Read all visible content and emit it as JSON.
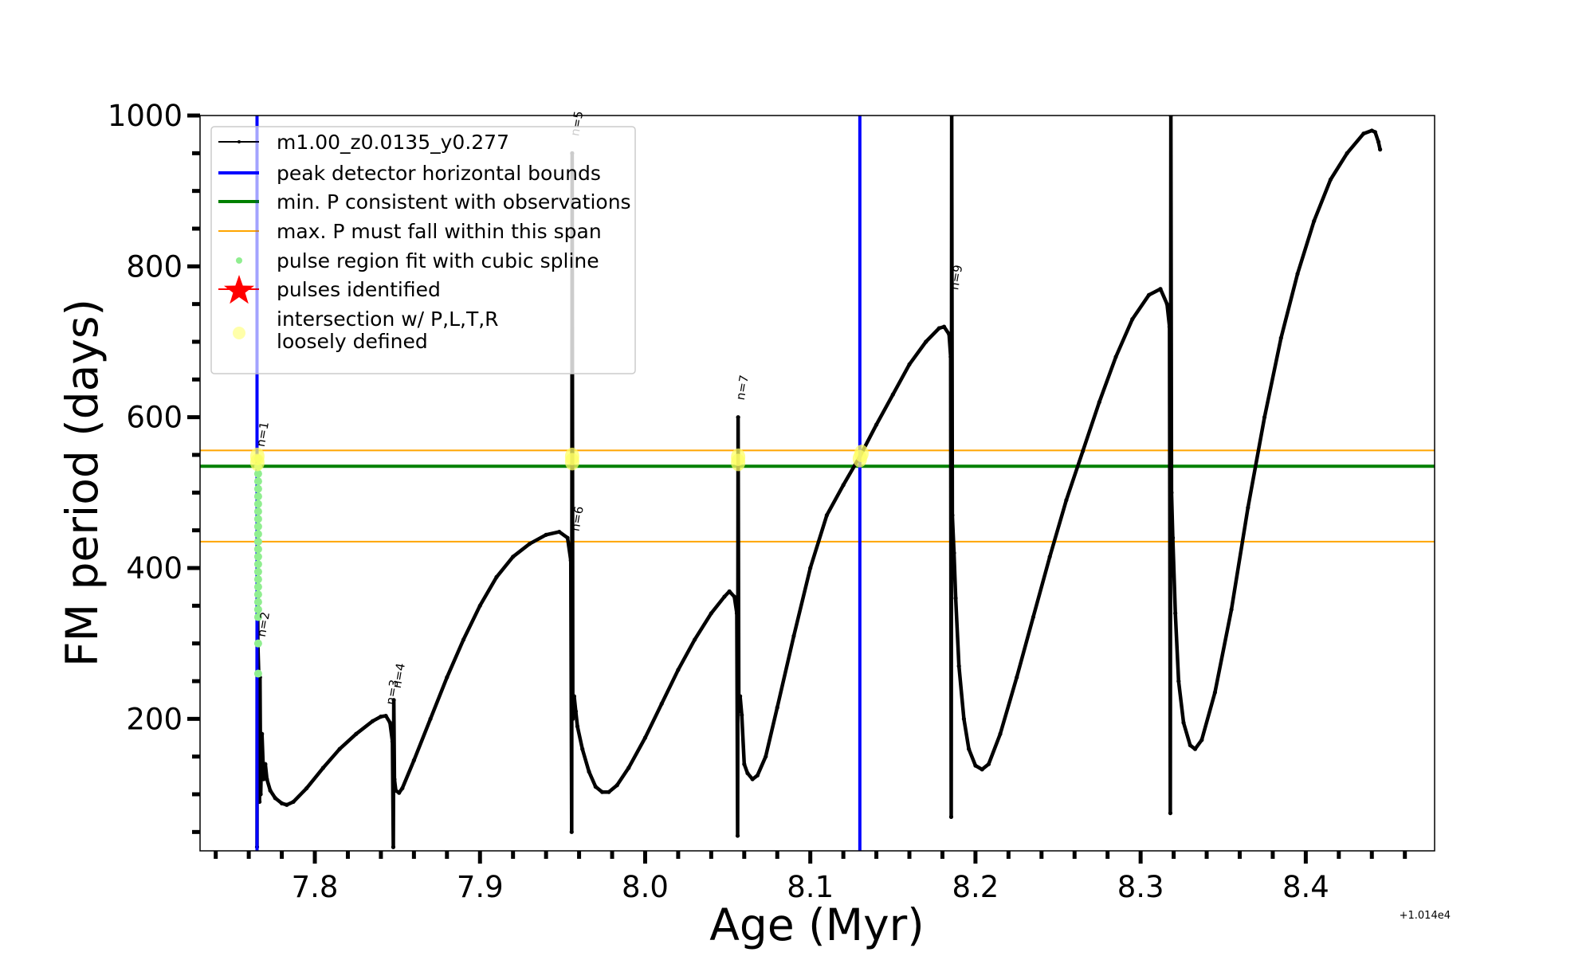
{
  "chart_data": {
    "type": "line",
    "title": "",
    "xlabel": "Age (Myr)",
    "ylabel": "FM period (days)",
    "x_offset_text": "+1.014e4",
    "xlim": [
      7.7305,
      8.478
    ],
    "ylim": [
      25,
      1000
    ],
    "xticks": [
      7.8,
      7.9,
      8.0,
      8.1,
      8.2,
      8.3,
      8.4
    ],
    "xtick_labels": [
      "7.8",
      "7.9",
      "8.0",
      "8.1",
      "8.2",
      "8.3",
      "8.4"
    ],
    "x_minor_step": 0.02,
    "yticks": [
      200,
      400,
      600,
      800,
      1000
    ],
    "ytick_labels": [
      "200",
      "400",
      "600",
      "800",
      "1000"
    ],
    "y_minor_step": 50,
    "grid": false,
    "legend_position": "top-left",
    "series": [
      {
        "name": "m1.00_z0.0135_y0.277",
        "color": "#000000",
        "style": "line-with-dots",
        "points": [
          [
            7.765,
            30
          ],
          [
            7.7652,
            545
          ],
          [
            7.7655,
            300
          ],
          [
            7.766,
            260
          ],
          [
            7.7665,
            90
          ],
          [
            7.7668,
            255
          ],
          [
            7.7672,
            100
          ],
          [
            7.768,
            180
          ],
          [
            7.769,
            120
          ],
          [
            7.77,
            140
          ],
          [
            7.771,
            120
          ],
          [
            7.773,
            105
          ],
          [
            7.776,
            95
          ],
          [
            7.78,
            88
          ],
          [
            7.783,
            86
          ],
          [
            7.787,
            90
          ],
          [
            7.795,
            108
          ],
          [
            7.805,
            135
          ],
          [
            7.815,
            160
          ],
          [
            7.825,
            180
          ],
          [
            7.835,
            197
          ],
          [
            7.84,
            203
          ],
          [
            7.843,
            204
          ],
          [
            7.8455,
            195
          ],
          [
            7.847,
            170
          ],
          [
            7.8475,
            30
          ],
          [
            7.8478,
            225
          ],
          [
            7.8482,
            120
          ],
          [
            7.849,
            105
          ],
          [
            7.851,
            102
          ],
          [
            7.853,
            108
          ],
          [
            7.86,
            145
          ],
          [
            7.87,
            200
          ],
          [
            7.88,
            255
          ],
          [
            7.89,
            305
          ],
          [
            7.9,
            350
          ],
          [
            7.91,
            388
          ],
          [
            7.92,
            415
          ],
          [
            7.93,
            432
          ],
          [
            7.94,
            444
          ],
          [
            7.948,
            448
          ],
          [
            7.953,
            440
          ],
          [
            7.955,
            410
          ],
          [
            7.9555,
            50
          ],
          [
            7.9558,
            950
          ],
          [
            7.9562,
            200
          ],
          [
            7.957,
            230
          ],
          [
            7.958,
            210
          ],
          [
            7.959,
            190
          ],
          [
            7.962,
            160
          ],
          [
            7.966,
            130
          ],
          [
            7.97,
            110
          ],
          [
            7.974,
            103
          ],
          [
            7.978,
            103
          ],
          [
            7.983,
            112
          ],
          [
            7.99,
            135
          ],
          [
            8.0,
            175
          ],
          [
            8.01,
            220
          ],
          [
            8.02,
            265
          ],
          [
            8.03,
            305
          ],
          [
            8.04,
            340
          ],
          [
            8.048,
            362
          ],
          [
            8.051,
            369
          ],
          [
            8.054,
            362
          ],
          [
            8.0555,
            340
          ],
          [
            8.056,
            45
          ],
          [
            8.0563,
            600
          ],
          [
            8.0567,
            210
          ],
          [
            8.0575,
            230
          ],
          [
            8.0585,
            205
          ],
          [
            8.06,
            140
          ],
          [
            8.062,
            128
          ],
          [
            8.065,
            120
          ],
          [
            8.068,
            125
          ],
          [
            8.073,
            150
          ],
          [
            8.08,
            215
          ],
          [
            8.09,
            310
          ],
          [
            8.1,
            400
          ],
          [
            8.11,
            470
          ],
          [
            8.12,
            510
          ],
          [
            8.13,
            548
          ],
          [
            8.14,
            590
          ],
          [
            8.15,
            630
          ],
          [
            8.16,
            670
          ],
          [
            8.17,
            700
          ],
          [
            8.178,
            718
          ],
          [
            8.181,
            720
          ],
          [
            8.184,
            710
          ],
          [
            8.185,
            680
          ],
          [
            8.1853,
            70
          ],
          [
            8.1856,
            1000
          ],
          [
            8.186,
            470
          ],
          [
            8.187,
            420
          ],
          [
            8.188,
            360
          ],
          [
            8.19,
            270
          ],
          [
            8.193,
            200
          ],
          [
            8.196,
            160
          ],
          [
            8.2,
            138
          ],
          [
            8.204,
            133
          ],
          [
            8.208,
            140
          ],
          [
            8.215,
            180
          ],
          [
            8.225,
            255
          ],
          [
            8.235,
            335
          ],
          [
            8.245,
            415
          ],
          [
            8.255,
            490
          ],
          [
            8.265,
            555
          ],
          [
            8.275,
            620
          ],
          [
            8.285,
            680
          ],
          [
            8.295,
            730
          ],
          [
            8.305,
            762
          ],
          [
            8.312,
            770
          ],
          [
            8.316,
            750
          ],
          [
            8.3175,
            720
          ],
          [
            8.318,
            75
          ],
          [
            8.3183,
            1000
          ],
          [
            8.3187,
            500
          ],
          [
            8.3195,
            440
          ],
          [
            8.321,
            340
          ],
          [
            8.323,
            250
          ],
          [
            8.326,
            195
          ],
          [
            8.33,
            165
          ],
          [
            8.333,
            160
          ],
          [
            8.337,
            172
          ],
          [
            8.345,
            235
          ],
          [
            8.355,
            345
          ],
          [
            8.365,
            480
          ],
          [
            8.375,
            600
          ],
          [
            8.385,
            705
          ],
          [
            8.395,
            790
          ],
          [
            8.405,
            860
          ],
          [
            8.415,
            915
          ],
          [
            8.425,
            950
          ],
          [
            8.435,
            976
          ],
          [
            8.44,
            980
          ],
          [
            8.442,
            978
          ],
          [
            8.444,
            965
          ],
          [
            8.445,
            955
          ]
        ]
      }
    ],
    "vertical_lines": [
      {
        "name": "peak detector horizontal bounds",
        "x": 7.765,
        "color": "#0000ff"
      },
      {
        "name": "peak detector horizontal bounds",
        "x": 8.13,
        "color": "#0000ff"
      }
    ],
    "horizontal_lines": [
      {
        "name": "min. P consistent with observations",
        "y": 535,
        "color": "#008000"
      },
      {
        "name": "max. P must fall within this span",
        "y": 556,
        "color": "#ffa500"
      },
      {
        "name": "max. P must fall within this span",
        "y": 435,
        "color": "#ffa500"
      }
    ],
    "spline_fit_points": {
      "name": "pulse region fit with cubic spline",
      "color": "#90ee90",
      "x": 7.7652,
      "y": [
        260,
        300,
        335,
        345,
        355,
        365,
        375,
        385,
        395,
        405,
        415,
        425,
        435,
        445,
        455,
        465,
        475,
        485,
        495,
        505,
        515,
        525,
        535,
        545
      ]
    },
    "intersection_points": {
      "name": "intersection w/ P,L,T,R loosely defined",
      "color": "#ffff66",
      "points": [
        [
          7.7652,
          540
        ],
        [
          7.7652,
          548
        ],
        [
          7.9558,
          548
        ],
        [
          7.9558,
          541
        ],
        [
          8.0563,
          547
        ],
        [
          8.0563,
          540
        ],
        [
          8.13,
          545
        ],
        [
          8.131,
          552
        ]
      ]
    },
    "pulse_labels": [
      {
        "text": "n=1",
        "x": 7.7665,
        "y": 560,
        "gray": false
      },
      {
        "text": "n=2",
        "x": 7.767,
        "y": 308,
        "gray": false
      },
      {
        "text": "n=3",
        "x": 7.845,
        "y": 218,
        "gray": false
      },
      {
        "text": "n=4",
        "x": 7.849,
        "y": 240,
        "gray": false
      },
      {
        "text": "n=5",
        "x": 7.9568,
        "y": 972,
        "gray": true
      },
      {
        "text": "n=6",
        "x": 7.957,
        "y": 448,
        "gray": false
      },
      {
        "text": "n=7",
        "x": 8.057,
        "y": 622,
        "gray": false
      },
      {
        "text": "n=9",
        "x": 8.1865,
        "y": 768,
        "gray": false
      }
    ],
    "legend": [
      {
        "label": "m1.00_z0.0135_y0.277",
        "marker": "line-dot",
        "color": "#000000"
      },
      {
        "label": "peak detector horizontal bounds",
        "marker": "thick-line",
        "color": "#0000ff"
      },
      {
        "label": "min. P consistent with observations",
        "marker": "thick-line",
        "color": "#008000"
      },
      {
        "label": "max. P must fall within this span",
        "marker": "thin-line",
        "color": "#ffa500"
      },
      {
        "label": "pulse region fit with cubic spline",
        "marker": "dot",
        "color": "#90ee90"
      },
      {
        "label": "pulses identified",
        "marker": "star",
        "color": "#ff0000"
      },
      {
        "label": "intersection w/ P,L,T,R\nloosely defined",
        "marker": "big-dot",
        "color": "#ffffaa"
      }
    ]
  }
}
